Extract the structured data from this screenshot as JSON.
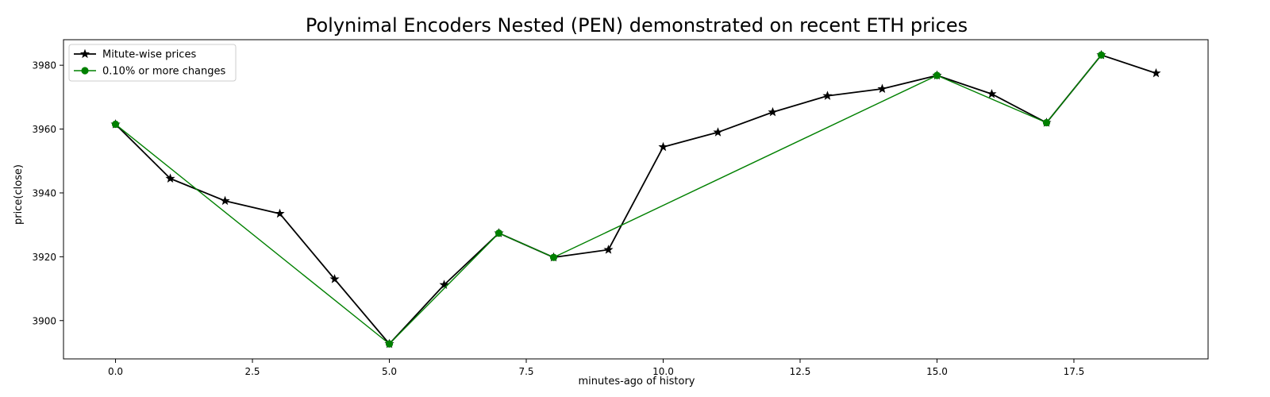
{
  "chart_data": {
    "type": "line",
    "title": "Polynimal Encoders Nested (PEN) demonstrated on recent ETH prices",
    "xlabel": "minutes-ago of history",
    "ylabel": "price(close)",
    "xlim": [
      -0.95,
      19.95
    ],
    "ylim": [
      3888,
      3988
    ],
    "xticks": [
      0.0,
      2.5,
      5.0,
      7.5,
      10.0,
      12.5,
      15.0,
      17.5
    ],
    "xtick_labels": [
      "0.0",
      "2.5",
      "5.0",
      "7.5",
      "10.0",
      "12.5",
      "15.0",
      "17.5"
    ],
    "yticks": [
      3900,
      3920,
      3940,
      3960,
      3980
    ],
    "ytick_labels": [
      "3900",
      "3920",
      "3940",
      "3960",
      "3980"
    ],
    "grid": false,
    "legend_position": "top-left",
    "series": [
      {
        "name": "Mitute-wise prices",
        "color": "#000000",
        "marker": "star",
        "x": [
          0,
          1,
          2,
          3,
          4,
          5,
          6,
          7,
          8,
          9,
          10,
          11,
          12,
          13,
          14,
          15,
          16,
          17,
          18,
          19
        ],
        "y": [
          3961.5,
          3944.5,
          3937.5,
          3933.5,
          3913.0,
          3892.7,
          3911.2,
          3927.4,
          3919.8,
          3922.2,
          3954.4,
          3959.0,
          3965.3,
          3970.4,
          3972.6,
          3976.8,
          3971.0,
          3962.0,
          3983.2,
          3977.5
        ]
      },
      {
        "name": "0.10% or more changes",
        "color": "#008000",
        "marker": "circle",
        "x": [
          0,
          5,
          7,
          8,
          15,
          17,
          18
        ],
        "y": [
          3961.5,
          3892.7,
          3927.4,
          3919.8,
          3976.8,
          3962.0,
          3983.2
        ]
      }
    ]
  }
}
